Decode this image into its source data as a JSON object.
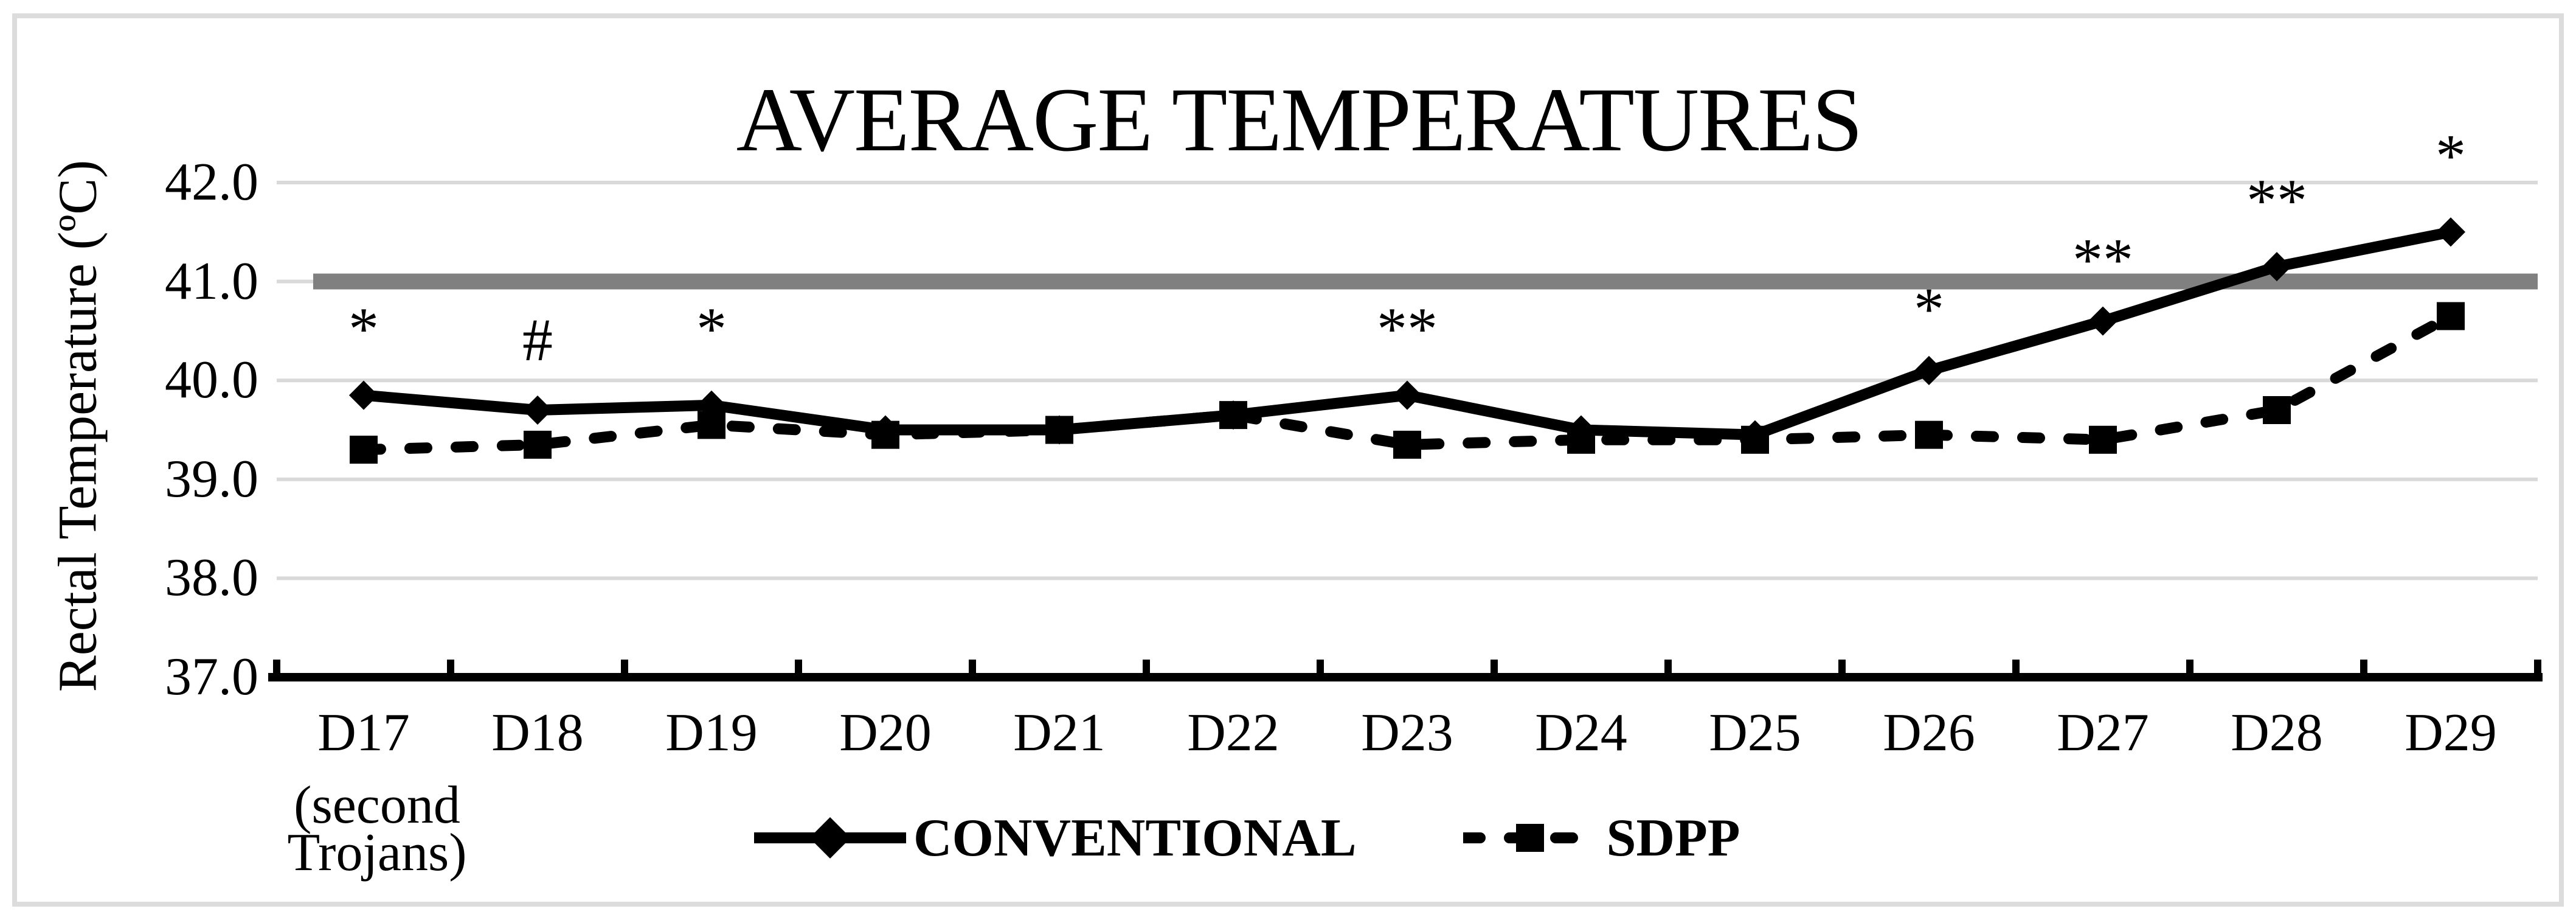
{
  "figure": {
    "title": "AVERAGE TEMPERATURES",
    "y_axis_title": "Rectal Temperature (ºC)",
    "x_note_line1": "(second",
    "x_note_line2": "Trojans)"
  },
  "legend": {
    "conventional": "CONVENTIONAL",
    "sdpp": "SDPP"
  },
  "colors": {
    "series": "#000000",
    "gridline": "#d9d9d9",
    "reference_line": "#808080",
    "border": "#dcdcdc",
    "background": "#ffffff"
  },
  "chart_data": {
    "type": "line",
    "title": "AVERAGE TEMPERATURES",
    "xlabel": "",
    "ylabel": "Rectal Temperature (ºC)",
    "categories": [
      "D17",
      "D18",
      "D19",
      "D20",
      "D21",
      "D22",
      "D23",
      "D24",
      "D25",
      "D26",
      "D27",
      "D28",
      "D29"
    ],
    "x_first_category_note": "(second Trojans)",
    "series": [
      {
        "name": "CONVENTIONAL",
        "line_style": "solid",
        "marker": "diamond",
        "color": "#000000",
        "values": [
          39.85,
          39.7,
          39.75,
          39.5,
          39.5,
          39.65,
          39.85,
          39.5,
          39.45,
          40.1,
          40.6,
          41.15,
          41.5
        ]
      },
      {
        "name": "SDPP",
        "line_style": "dashed",
        "marker": "square",
        "color": "#000000",
        "values": [
          39.3,
          39.35,
          39.55,
          39.45,
          39.5,
          39.65,
          39.35,
          39.4,
          39.4,
          39.45,
          39.4,
          39.7,
          40.65
        ]
      }
    ],
    "ylim": [
      37.0,
      42.0
    ],
    "ytick_labels": [
      "37.0",
      "38.0",
      "39.0",
      "40.0",
      "41.0",
      "42.0"
    ],
    "yticks": [
      37.0,
      38.0,
      39.0,
      40.0,
      41.0,
      42.0
    ],
    "grid": true,
    "reference_line_y": 41.0,
    "legend_position": "bottom",
    "annotations": [
      {
        "category": "D17",
        "symbol": "*",
        "y": 40.6
      },
      {
        "category": "D18",
        "symbol": "#",
        "y": 40.4
      },
      {
        "category": "D19",
        "symbol": "*",
        "y": 40.6
      },
      {
        "category": "D23",
        "symbol": "**",
        "y": 40.6
      },
      {
        "category": "D26",
        "symbol": "*",
        "y": 40.8
      },
      {
        "category": "D27",
        "symbol": "**",
        "y": 41.3
      },
      {
        "category": "D28",
        "symbol": "**",
        "y": 41.9
      },
      {
        "category": "D29",
        "symbol": "*",
        "y": 42.35
      }
    ]
  }
}
